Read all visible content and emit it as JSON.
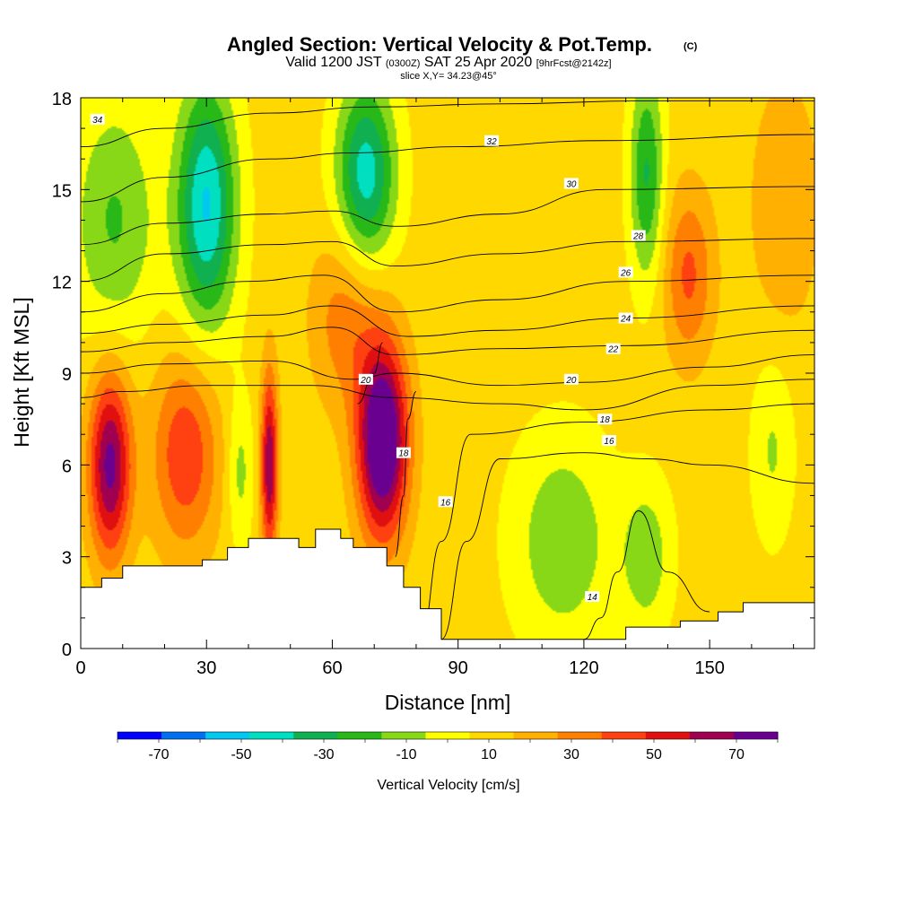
{
  "chart_data": {
    "type": "contour",
    "title": "Angled Section: Vertical Velocity & Pot.Temp.",
    "title_units": "(C)",
    "subtitle": {
      "valid": "Valid 1200 JST",
      "utc": "(0300Z)",
      "date": "SAT 25 Apr 2020",
      "forecast": "[9hrFcst@2142z]"
    },
    "slice_text": "slice X,Y= 34.23@45°",
    "xlabel": "Distance [nm]",
    "ylabel": "Height [Kft MSL]",
    "xlim": [
      0,
      175
    ],
    "ylim": [
      0,
      18
    ],
    "xticks": [
      0,
      30,
      60,
      90,
      120,
      150
    ],
    "yticks": [
      0,
      3,
      6,
      9,
      12,
      15,
      18
    ],
    "grid": false,
    "fill_variable": "Vertical Velocity [cm/s]",
    "colorbar": {
      "label": "Vertical Velocity [cm/s]",
      "levels": [
        -80,
        -70,
        -60,
        -50,
        -40,
        -30,
        -20,
        -10,
        0,
        10,
        20,
        30,
        40,
        50,
        60,
        70,
        80
      ],
      "colors": [
        "#0000ff",
        "#0070f0",
        "#00c8f0",
        "#00e0c0",
        "#10b050",
        "#28b818",
        "#88d818",
        "#ffff00",
        "#ffd800",
        "#ffb000",
        "#ff8000",
        "#ff4010",
        "#e01010",
        "#a00050",
        "#6a0090"
      ],
      "tick_labels": [
        -70,
        -50,
        -30,
        -10,
        10,
        30,
        50,
        70
      ],
      "position": "bottom"
    },
    "terrain_kft": [
      [
        0,
        2.0
      ],
      [
        5,
        2.3
      ],
      [
        10,
        2.7
      ],
      [
        20,
        2.7
      ],
      [
        29,
        2.9
      ],
      [
        35,
        3.3
      ],
      [
        40,
        3.6
      ],
      [
        48,
        3.6
      ],
      [
        52,
        3.3
      ],
      [
        56,
        3.9
      ],
      [
        62,
        3.6
      ],
      [
        65,
        3.3
      ],
      [
        70,
        3.3
      ],
      [
        73,
        2.7
      ],
      [
        77,
        2.0
      ],
      [
        81,
        1.3
      ],
      [
        86,
        0.3
      ],
      [
        100,
        0.3
      ],
      [
        118,
        0.3
      ],
      [
        125,
        0.3
      ],
      [
        130,
        0.7
      ],
      [
        143,
        0.9
      ],
      [
        152,
        1.2
      ],
      [
        158,
        1.5
      ],
      [
        175,
        1.6
      ]
    ],
    "updrafts": [
      {
        "x": 7,
        "y": 6.0,
        "rx": 5,
        "ry": 3.0,
        "w": 60
      },
      {
        "x": 25,
        "y": 6.4,
        "rx": 8,
        "ry": 3.2,
        "w": 35
      },
      {
        "x": 45,
        "y": 6.0,
        "rx": 2,
        "ry": 3.0,
        "w": 55
      },
      {
        "x": 72,
        "y": 6.8,
        "rx": 6,
        "ry": 3.2,
        "w": 78
      },
      {
        "x": 63,
        "y": 10.8,
        "rx": 8,
        "ry": 3.0,
        "w": 22
      },
      {
        "x": 145,
        "y": 12.2,
        "rx": 6,
        "ry": 2.8,
        "w": 28
      },
      {
        "x": 168,
        "y": 14.5,
        "rx": 8,
        "ry": 4.0,
        "w": 16
      }
    ],
    "downdrafts": [
      {
        "x": 30,
        "y": 14.5,
        "rx": 7,
        "ry": 4.0,
        "w": -55
      },
      {
        "x": 68,
        "y": 15.5,
        "rx": 7,
        "ry": 3.0,
        "w": -50
      },
      {
        "x": 135,
        "y": 15.5,
        "rx": 4,
        "ry": 3.5,
        "w": -35
      },
      {
        "x": 8,
        "y": 14.0,
        "rx": 10,
        "ry": 4.0,
        "w": -25
      },
      {
        "x": 115,
        "y": 3.5,
        "rx": 12,
        "ry": 3.5,
        "w": -22
      },
      {
        "x": 135,
        "y": 3.0,
        "rx": 6,
        "ry": 2.5,
        "w": -20
      },
      {
        "x": 38,
        "y": 5.8,
        "rx": 3,
        "ry": 2.5,
        "w": -18
      },
      {
        "x": 165,
        "y": 6.5,
        "rx": 5,
        "ry": 3.0,
        "w": -15
      }
    ],
    "isentropes": [
      {
        "theta": 14,
        "points": [
          [
            120,
            0.3
          ],
          [
            124,
            1.0
          ],
          [
            128,
            2.5
          ],
          [
            133,
            4.5
          ],
          [
            140,
            2.5
          ],
          [
            150,
            1.2
          ]
        ],
        "label_at": [
          122,
          1.7
        ]
      },
      {
        "theta": 16,
        "points": [
          [
            86,
            0.3
          ],
          [
            92,
            3.5
          ],
          [
            100,
            6.2
          ],
          [
            120,
            6.4
          ],
          [
            135,
            6.2
          ],
          [
            150,
            6.0
          ],
          [
            175,
            5.4
          ]
        ],
        "label_at": [
          126,
          6.8
        ]
      },
      {
        "theta": 16,
        "points": [
          [
            81,
            0.3
          ],
          [
            86,
            3.5
          ],
          [
            93,
            7.0
          ],
          [
            120,
            7.4
          ],
          [
            150,
            7.8
          ],
          [
            175,
            8.0
          ]
        ],
        "label_at": [
          87,
          4.8
        ]
      },
      {
        "theta": 18,
        "points": [
          [
            0,
            8.2
          ],
          [
            10,
            8.4
          ],
          [
            30,
            8.6
          ],
          [
            55,
            8.6
          ],
          [
            75,
            8.2
          ],
          [
            100,
            8.0
          ],
          [
            120,
            7.8
          ],
          [
            150,
            8.6
          ],
          [
            175,
            8.8
          ]
        ],
        "label_at": [
          125,
          7.5
        ]
      },
      {
        "theta": 18,
        "points": [
          [
            75,
            3.0
          ],
          [
            77,
            5.0
          ],
          [
            78,
            7.5
          ],
          [
            80,
            8.4
          ]
        ],
        "label_at": [
          77,
          6.4
        ]
      },
      {
        "theta": 20,
        "points": [
          [
            0,
            9.0
          ],
          [
            20,
            9.3
          ],
          [
            45,
            9.4
          ],
          [
            65,
            8.8
          ],
          [
            75,
            9.0
          ],
          [
            100,
            8.6
          ],
          [
            120,
            8.7
          ],
          [
            150,
            9.2
          ],
          [
            175,
            9.6
          ]
        ],
        "label_at": [
          117,
          8.8
        ]
      },
      {
        "theta": 20,
        "points": [
          [
            66,
            8.0
          ],
          [
            70,
            9.0
          ],
          [
            72,
            10.0
          ]
        ],
        "label_at": [
          68,
          8.8
        ]
      },
      {
        "theta": 22,
        "points": [
          [
            0,
            9.7
          ],
          [
            20,
            10.0
          ],
          [
            45,
            10.2
          ],
          [
            60,
            10.5
          ],
          [
            75,
            9.6
          ],
          [
            100,
            9.8
          ],
          [
            130,
            9.9
          ],
          [
            175,
            10.4
          ]
        ],
        "label_at": [
          127,
          9.8
        ]
      },
      {
        "theta": 24,
        "points": [
          [
            0,
            10.3
          ],
          [
            20,
            10.6
          ],
          [
            45,
            10.9
          ],
          [
            60,
            11.2
          ],
          [
            78,
            10.2
          ],
          [
            100,
            10.4
          ],
          [
            130,
            10.8
          ],
          [
            175,
            11.2
          ]
        ],
        "label_at": [
          130,
          10.8
        ]
      },
      {
        "theta": 26,
        "points": [
          [
            0,
            11.0
          ],
          [
            20,
            11.6
          ],
          [
            40,
            12.0
          ],
          [
            58,
            12.2
          ],
          [
            75,
            11.0
          ],
          [
            100,
            11.4
          ],
          [
            130,
            12.0
          ],
          [
            175,
            12.2
          ]
        ],
        "label_at": [
          130,
          12.3
        ]
      },
      {
        "theta": 28,
        "points": [
          [
            0,
            12.0
          ],
          [
            20,
            12.9
          ],
          [
            45,
            13.2
          ],
          [
            60,
            13.3
          ],
          [
            75,
            12.5
          ],
          [
            100,
            12.9
          ],
          [
            130,
            13.3
          ],
          [
            175,
            13.4
          ]
        ],
        "label_at": [
          133,
          13.5
        ]
      },
      {
        "theta": 30,
        "points": [
          [
            0,
            13.2
          ],
          [
            20,
            13.9
          ],
          [
            45,
            14.2
          ],
          [
            60,
            14.3
          ],
          [
            75,
            13.8
          ],
          [
            100,
            14.2
          ],
          [
            125,
            15.0
          ],
          [
            175,
            15.1
          ]
        ],
        "label_at": [
          117,
          15.2
        ]
      },
      {
        "theta": 32,
        "points": [
          [
            0,
            14.6
          ],
          [
            20,
            15.4
          ],
          [
            45,
            16.0
          ],
          [
            65,
            16.2
          ],
          [
            90,
            16.4
          ],
          [
            125,
            16.6
          ],
          [
            175,
            16.8
          ]
        ],
        "label_at": [
          98,
          16.6
        ]
      },
      {
        "theta": 34,
        "points": [
          [
            0,
            16.4
          ],
          [
            20,
            17.0
          ],
          [
            45,
            17.5
          ],
          [
            70,
            17.7
          ],
          [
            100,
            17.8
          ],
          [
            135,
            17.9
          ],
          [
            175,
            17.9
          ]
        ],
        "label_at": [
          4,
          17.3
        ]
      }
    ]
  }
}
